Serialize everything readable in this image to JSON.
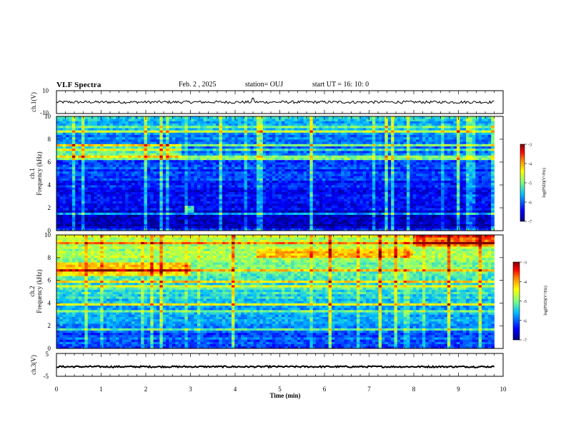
{
  "header": {
    "title": "VLF Spectra",
    "date": "Feb. 2 , 2025",
    "station": "station= OUJ",
    "start": "start UT = 16: 10: 0"
  },
  "chart_data": [
    {
      "type": "line",
      "title": "",
      "ylabel": "ch.1(V)",
      "xlim": [
        0,
        10
      ],
      "ylim": [
        -10,
        10
      ],
      "yticks": [
        10,
        -10
      ],
      "series": [
        {
          "baseline": 0,
          "amplitude": 1.2,
          "spikes": [
            {
              "x": 4.4,
              "y": 3.5
            }
          ]
        }
      ]
    },
    {
      "type": "heatmap",
      "channel_label": "ch.1",
      "ylabel": "Frequency (kHz)",
      "xlim": [
        0,
        9.8
      ],
      "ylim": [
        0,
        10
      ],
      "yticks": [
        0,
        2,
        4,
        6,
        8,
        10
      ],
      "colorbar": {
        "label": "log(PSD)(V²/Hz)",
        "range": [
          -7,
          -3
        ],
        "ticks": [
          -3,
          -4,
          -5,
          -6,
          -7
        ]
      },
      "description_levels": {
        "background_low_freq": -6.8,
        "background_high_freq": -5.6,
        "band_6_5_to_7_5_kHz_before_2_8_min": -4.8,
        "spot_2_kHz_at_3_min": -4.9
      }
    },
    {
      "type": "heatmap",
      "channel_label": "ch.2",
      "ylabel": "Frequency (kHz)",
      "xlim": [
        0,
        9.8
      ],
      "ylim": [
        0,
        10
      ],
      "yticks": [
        0,
        2,
        4,
        6,
        8,
        10
      ],
      "colorbar": {
        "label": "log(PSD)(V²/Hz)",
        "range": [
          -7,
          -3
        ],
        "ticks": [
          -3,
          -4,
          -5,
          -6,
          -7
        ]
      },
      "description_levels": {
        "background_low_freq": -6.2,
        "background_high_freq": -4.6,
        "band_6_5_to_7_5_kHz_before_3_min": -3.8,
        "band_8_to_8_7_kHz_4_5_to_8_min": -3.9,
        "band_9_to_10_kHz_after_8_min": -3.6
      }
    },
    {
      "type": "line",
      "title": "",
      "ylabel": "ch.3(V)",
      "xlabel": "Time (min)",
      "xlim": [
        0,
        10
      ],
      "ylim": [
        -5,
        5
      ],
      "yticks": [
        5,
        -5
      ],
      "xticks": [
        0,
        1,
        2,
        3,
        4,
        5,
        6,
        7,
        8,
        9,
        10
      ],
      "series": [
        {
          "baseline": -0.8,
          "amplitude": 0.35
        }
      ]
    }
  ],
  "colors": {
    "background": "#ffffff",
    "trace": "#000000",
    "colormap": [
      "#00007f",
      "#0000ff",
      "#00bfff",
      "#7fff7f",
      "#ffff00",
      "#ff7f00",
      "#ff0000",
      "#7f0000"
    ]
  }
}
